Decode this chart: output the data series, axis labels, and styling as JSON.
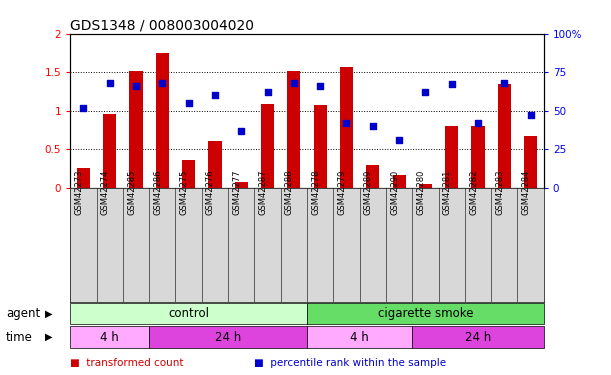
{
  "title": "GDS1348 / 008003004020",
  "samples": [
    "GSM42273",
    "GSM42274",
    "GSM42285",
    "GSM42286",
    "GSM42275",
    "GSM42276",
    "GSM42277",
    "GSM42287",
    "GSM42288",
    "GSM42278",
    "GSM42279",
    "GSM42289",
    "GSM42290",
    "GSM42280",
    "GSM42281",
    "GSM42282",
    "GSM42283",
    "GSM42284"
  ],
  "transformed_count": [
    0.25,
    0.95,
    1.51,
    1.75,
    0.36,
    0.6,
    0.07,
    1.08,
    1.51,
    1.07,
    1.57,
    0.29,
    0.16,
    0.04,
    0.8,
    0.8,
    1.35,
    0.67
  ],
  "percentile_rank": [
    52,
    68,
    66,
    68,
    55,
    60,
    37,
    62,
    68,
    66,
    42,
    40,
    31,
    62,
    67,
    42,
    68,
    47
  ],
  "bar_color": "#cc0000",
  "dot_color": "#0000cc",
  "ylim_left": [
    0,
    2
  ],
  "ylim_right": [
    0,
    100
  ],
  "yticks_left": [
    0,
    0.5,
    1.0,
    1.5,
    2.0
  ],
  "yticks_right": [
    0,
    25,
    50,
    75,
    100
  ],
  "yticklabels_left": [
    "0",
    "0.5",
    "1",
    "1.5",
    "2"
  ],
  "yticklabels_right": [
    "0",
    "25",
    "50",
    "75",
    "100%"
  ],
  "agent_groups": [
    {
      "label": "control",
      "start": 0,
      "end": 9,
      "color": "#ccffcc"
    },
    {
      "label": "cigarette smoke",
      "start": 9,
      "end": 18,
      "color": "#66dd66"
    }
  ],
  "time_groups": [
    {
      "label": "4 h",
      "start": 0,
      "end": 3,
      "color": "#ffaaff"
    },
    {
      "label": "24 h",
      "start": 3,
      "end": 9,
      "color": "#dd44dd"
    },
    {
      "label": "4 h",
      "start": 9,
      "end": 13,
      "color": "#ffaaff"
    },
    {
      "label": "24 h",
      "start": 13,
      "end": 18,
      "color": "#dd44dd"
    }
  ],
  "agent_row_label": "agent",
  "time_row_label": "time",
  "legend_items": [
    {
      "label": "transformed count",
      "color": "#cc0000"
    },
    {
      "label": "percentile rank within the sample",
      "color": "#0000cc"
    }
  ],
  "background_color": "#ffffff",
  "title_fontsize": 10,
  "tick_label_fontsize": 7.5,
  "annotation_fontsize": 8.5,
  "sample_label_fontsize": 6,
  "legend_fontsize": 7.5,
  "row_label_fontsize": 8.5,
  "gray_bg": "#d8d8d8"
}
